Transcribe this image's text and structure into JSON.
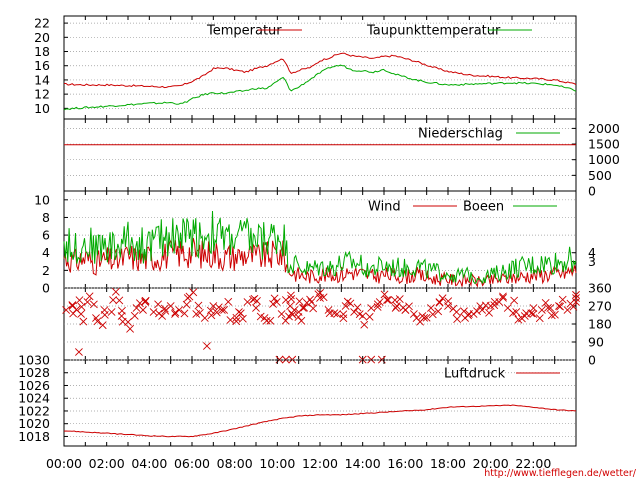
{
  "footer": {
    "url": "http://www.tiefflegen.de/wetter/"
  },
  "x_axis": {
    "ticks": [
      "00:00",
      "02:00",
      "04:00",
      "06:00",
      "08:00",
      "10:00",
      "12:00",
      "14:00",
      "16:00",
      "18:00",
      "20:00",
      "22:00"
    ],
    "range_hours": [
      0,
      24
    ]
  },
  "colors": {
    "primary": "#cc0000",
    "secondary": "#00aa00",
    "grid": "#999999",
    "axis": "#000000"
  },
  "chart_data": [
    {
      "type": "line",
      "panel": "temperature",
      "ylim": [
        8.5,
        23
      ],
      "yticks_left": [
        "10",
        "12",
        "14",
        "16",
        "18",
        "20",
        "22"
      ],
      "legend": [
        "Temperatur",
        "Taupunkttemperatur"
      ],
      "x": [
        0,
        1,
        2,
        3,
        4,
        5,
        5.5,
        6,
        6.5,
        7,
        7.5,
        8,
        8.5,
        9,
        9.5,
        10,
        10.3,
        10.6,
        10.9,
        11.2,
        11.6,
        12,
        12.5,
        13,
        13.5,
        14,
        14.5,
        15,
        15.5,
        16,
        16.5,
        17,
        17.5,
        18,
        19,
        20,
        21,
        22,
        23,
        24
      ],
      "series": [
        {
          "name": "Temperatur",
          "values": [
            13.4,
            13.3,
            13.3,
            13.2,
            13.1,
            13.0,
            13.2,
            13.8,
            14.5,
            15.6,
            15.7,
            15.4,
            15.1,
            15.6,
            16.0,
            16.7,
            17.0,
            15.0,
            15.2,
            15.5,
            15.8,
            16.7,
            17.2,
            17.8,
            17.4,
            17.2,
            17.0,
            17.3,
            17.4,
            17.0,
            16.6,
            16.1,
            15.6,
            15.2,
            14.7,
            14.5,
            14.3,
            14.2,
            14.0,
            13.4
          ]
        },
        {
          "name": "Taupunkttemperatur",
          "values": [
            9.9,
            10.1,
            10.3,
            10.5,
            10.7,
            10.8,
            10.6,
            11.3,
            11.9,
            12.2,
            12.1,
            12.3,
            12.5,
            12.8,
            12.8,
            13.8,
            14.4,
            12.5,
            12.8,
            13.4,
            14.2,
            15.0,
            15.8,
            16.1,
            15.4,
            15.3,
            15.1,
            15.5,
            14.8,
            14.4,
            14.0,
            13.7,
            13.5,
            13.3,
            13.4,
            13.5,
            13.6,
            13.5,
            13.3,
            12.5
          ]
        }
      ]
    },
    {
      "type": "line",
      "panel": "precipitation",
      "ylim": [
        0,
        2300
      ],
      "yticks_right": [
        "0",
        "500",
        "1000",
        "1500",
        "2000"
      ],
      "legend": [
        "Niederschlag"
      ],
      "x": [
        0,
        24
      ],
      "series": [
        {
          "name": "Niederschlag",
          "values": [
            1480,
            1480
          ]
        }
      ]
    },
    {
      "type": "line",
      "panel": "wind",
      "ylim": [
        0,
        11
      ],
      "yticks_left": [
        "0",
        "2",
        "4",
        "6",
        "8",
        "10"
      ],
      "yticks_right": [
        "3",
        "4"
      ],
      "legend": [
        "Wind",
        "Boeen"
      ],
      "x": [
        0,
        0.5,
        1,
        1.5,
        2,
        2.5,
        3,
        3.5,
        4,
        4.5,
        5,
        5.5,
        6,
        6.5,
        7,
        7.5,
        8,
        8.5,
        9,
        9.5,
        10,
        10.3,
        10.5,
        11,
        11.5,
        12,
        12.5,
        13,
        13.5,
        14,
        14.5,
        15,
        15.5,
        16,
        16.5,
        17,
        17.5,
        18,
        18.5,
        19,
        19.5,
        20,
        20.5,
        21,
        21.5,
        22,
        22.5,
        23,
        23.5,
        24
      ],
      "series": [
        {
          "name": "Wind",
          "values": [
            3.5,
            3.0,
            3.4,
            2.8,
            3.2,
            3.0,
            3.6,
            3.3,
            3.4,
            3.6,
            3.8,
            4.0,
            4.1,
            3.8,
            4.0,
            3.5,
            3.6,
            3.8,
            3.5,
            3.6,
            3.9,
            3.7,
            2.0,
            1.5,
            1.3,
            1.5,
            1.4,
            1.6,
            1.8,
            1.6,
            1.3,
            1.5,
            1.4,
            1.3,
            1.5,
            1.2,
            1.0,
            1.0,
            0.8,
            0.9,
            0.7,
            0.8,
            1.0,
            1.2,
            1.3,
            1.5,
            1.5,
            1.6,
            1.7,
            2.0
          ]
        },
        {
          "name": "Boeen",
          "values": [
            5.0,
            4.5,
            5.1,
            4.6,
            4.9,
            4.5,
            5.6,
            4.8,
            5.0,
            5.5,
            6.0,
            6.0,
            6.1,
            5.9,
            6.3,
            5.6,
            5.8,
            5.9,
            5.4,
            5.5,
            6.0,
            5.7,
            3.2,
            2.4,
            2.1,
            2.4,
            2.3,
            2.7,
            2.9,
            2.6,
            2.2,
            2.5,
            2.3,
            2.2,
            2.6,
            2.0,
            1.8,
            1.7,
            1.4,
            1.5,
            1.3,
            1.4,
            1.8,
            2.2,
            2.4,
            2.6,
            2.8,
            2.9,
            3.1,
            3.4
          ]
        }
      ]
    },
    {
      "type": "scatter",
      "panel": "direction",
      "ylim": [
        0,
        360
      ],
      "yticks_right": [
        "0",
        "90",
        "180",
        "270",
        "360"
      ],
      "marker": "x",
      "x": [
        0.1,
        0.4,
        0.8,
        1.1,
        1.5,
        1.9,
        2.3,
        2.7,
        3.0,
        3.4,
        3.8,
        4.2,
        4.6,
        5.0,
        5.4,
        5.8,
        6.2,
        6.6,
        7.0,
        7.4,
        7.8,
        8.2,
        8.6,
        9.0,
        9.4,
        9.8,
        10.2,
        10.4,
        10.6,
        10.8,
        11.0,
        11.2,
        11.6,
        12.0,
        12.4,
        12.8,
        13.2,
        13.6,
        14.0,
        14.4,
        14.8,
        15.2,
        15.6,
        16.0,
        16.4,
        16.8,
        17.2,
        17.6,
        18.0,
        18.4,
        18.8,
        19.2,
        19.6,
        20.0,
        20.4,
        20.8,
        21.2,
        21.6,
        22.0,
        22.4,
        22.8,
        23.2,
        23.6,
        24.0
      ],
      "values": [
        250,
        270,
        230,
        290,
        210,
        250,
        300,
        220,
        190,
        260,
        290,
        240,
        220,
        270,
        250,
        310,
        230,
        210,
        270,
        250,
        200,
        240,
        290,
        260,
        210,
        280,
        230,
        300,
        270,
        250,
        240,
        260,
        290,
        310,
        250,
        230,
        270,
        240,
        220,
        260,
        290,
        300,
        270,
        250,
        230,
        220,
        260,
        290,
        270,
        240,
        210,
        230,
        250,
        270,
        290,
        260,
        240,
        220,
        230,
        250,
        260,
        270,
        250,
        290
      ]
    },
    {
      "type": "line",
      "panel": "pressure",
      "ylim": [
        1016.5,
        1030
      ],
      "yticks_left": [
        "1018",
        "1020",
        "1022",
        "1024",
        "1026",
        "1028",
        "1030"
      ],
      "legend": [
        "Luftdruck"
      ],
      "x": [
        0,
        1,
        2,
        3,
        4,
        5,
        6,
        7,
        8,
        9,
        10,
        11,
        12,
        13,
        14,
        15,
        16,
        17,
        18,
        19,
        20,
        21,
        22,
        23,
        24
      ],
      "series": [
        {
          "name": "Luftdruck",
          "values": [
            1018.9,
            1018.7,
            1018.5,
            1018.3,
            1018.1,
            1018.0,
            1018.0,
            1018.5,
            1019.2,
            1020.0,
            1020.7,
            1021.2,
            1021.4,
            1021.4,
            1021.6,
            1021.8,
            1022.0,
            1022.2,
            1022.6,
            1022.7,
            1022.8,
            1022.9,
            1022.6,
            1022.2,
            1022.0
          ]
        }
      ]
    }
  ]
}
